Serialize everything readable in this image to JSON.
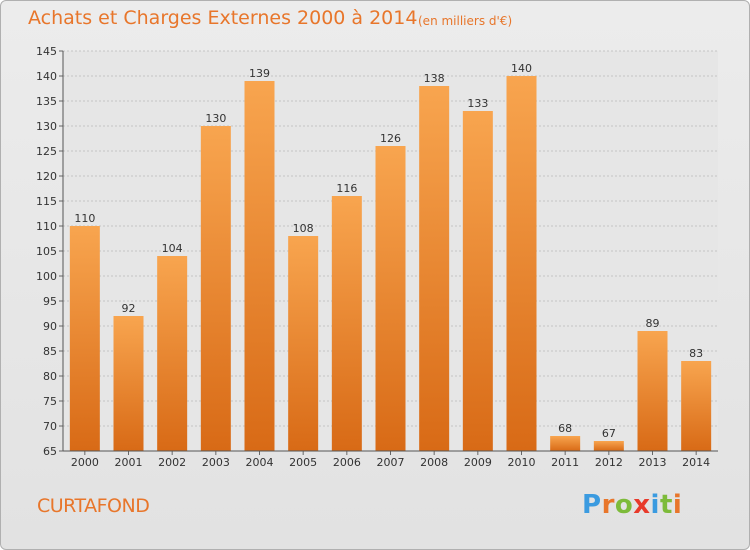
{
  "header": {
    "title": "Achats et Charges Externes 2000 à 2014",
    "subtitle": "(en milliers d'€)"
  },
  "footer": {
    "commune": "CURTAFOND",
    "brand": "Proxiti"
  },
  "colors": {
    "accent": "#e8762b",
    "bar_top": "#f8a54f",
    "bar_bottom": "#d86a16",
    "brand_letters": [
      "#3b9be0",
      "#e8762b",
      "#7dbb3a",
      "#e83a2b",
      "#3b9be0",
      "#7dbb3a",
      "#e8762b"
    ]
  },
  "chart_data": {
    "type": "bar",
    "title": "Achats et Charges Externes 2000 à 2014",
    "subtitle": "(en milliers d'€)",
    "categories": [
      "2000",
      "2001",
      "2002",
      "2003",
      "2004",
      "2005",
      "2006",
      "2007",
      "2008",
      "2009",
      "2010",
      "2011",
      "2012",
      "2013",
      "2014"
    ],
    "values": [
      110,
      92,
      104,
      130,
      139,
      108,
      116,
      126,
      138,
      133,
      140,
      68,
      67,
      89,
      83
    ],
    "ylim": [
      65,
      145
    ],
    "yticks": [
      65,
      70,
      75,
      80,
      85,
      90,
      95,
      100,
      105,
      110,
      115,
      120,
      125,
      130,
      135,
      140,
      145
    ],
    "grid": true,
    "data_labels": true,
    "xlabel": "",
    "ylabel": ""
  }
}
